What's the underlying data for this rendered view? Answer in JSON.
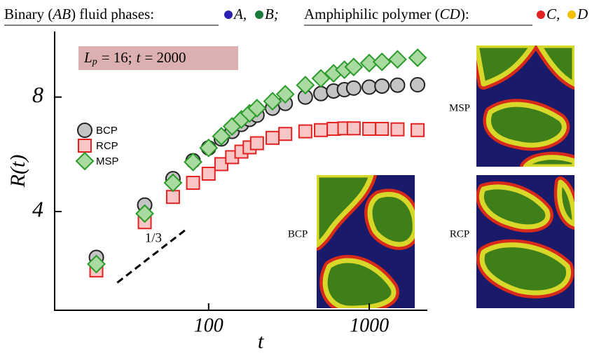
{
  "header": {
    "parts": [
      "Binary (",
      "AB",
      ") fluid phases:",
      "A,",
      "B;",
      "Amphiphilic polymer (",
      "CD",
      "):",
      "C,",
      "D"
    ]
  },
  "chart_data": {
    "type": "scatter",
    "xlabel": "t",
    "ylabel": "R(t)",
    "xlog": true,
    "ylog": true,
    "xlim": [
      11,
      2300
    ],
    "ylim": [
      2.2,
      11.9
    ],
    "xticks": [
      100,
      1000
    ],
    "yticks": [
      4,
      8
    ],
    "legend": "left",
    "box_label": [
      "L",
      "p",
      "= 16;",
      "t",
      "= 2000"
    ],
    "slope_line": {
      "label": "1/3",
      "x": [
        27,
        73
      ],
      "y": [
        2.6,
        3.6
      ]
    },
    "x": [
      20,
      40,
      60,
      80,
      100,
      120,
      140,
      160,
      180,
      200,
      250,
      300,
      400,
      500,
      600,
      700,
      800,
      1000,
      1200,
      1500,
      2000
    ],
    "series": [
      {
        "name": "BCP",
        "marker": "circle",
        "color": "#c4c4c4",
        "edge": "#222222",
        "values": [
          3.03,
          4.16,
          4.88,
          5.44,
          5.88,
          6.21,
          6.5,
          6.78,
          6.99,
          7.17,
          7.48,
          7.7,
          8.0,
          8.17,
          8.3,
          8.37,
          8.45,
          8.5,
          8.55,
          8.6,
          8.62
        ]
      },
      {
        "name": "RCP",
        "marker": "square",
        "color": "#f9c6c6",
        "edge": "#e52222",
        "values": [
          2.8,
          3.75,
          4.37,
          4.76,
          5.03,
          5.33,
          5.56,
          5.75,
          5.9,
          6.05,
          6.25,
          6.4,
          6.5,
          6.55,
          6.6,
          6.62,
          6.62,
          6.6,
          6.6,
          6.58,
          6.55
        ]
      },
      {
        "name": "MSP",
        "marker": "diamond",
        "color": "#a9dba0",
        "edge": "#2a9a2a",
        "values": [
          2.91,
          3.95,
          4.76,
          5.4,
          5.88,
          6.31,
          6.7,
          6.99,
          7.25,
          7.48,
          7.8,
          8.14,
          8.6,
          8.96,
          9.24,
          9.44,
          9.6,
          9.83,
          9.9,
          10.05,
          10.15
        ]
      }
    ],
    "insets": [
      "MSP",
      "BCP",
      "RCP"
    ]
  }
}
